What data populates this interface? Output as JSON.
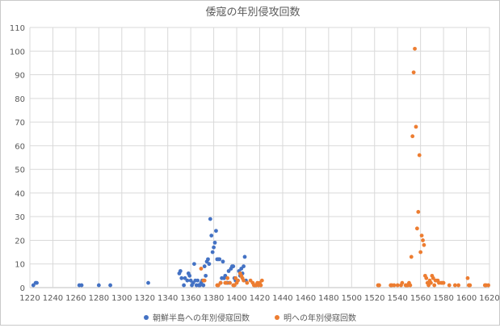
{
  "chart_data": {
    "type": "scatter",
    "title": "倭寇の年別侵攻回数",
    "xlabel": "",
    "ylabel": "",
    "xlim": [
      1220,
      1620
    ],
    "ylim": [
      0,
      110
    ],
    "x_ticks": [
      "1220",
      "1240",
      "1260",
      "1280",
      "1300",
      "1320",
      "1340",
      "1360",
      "1380",
      "1400",
      "1420",
      "1440",
      "1460",
      "1480",
      "1500",
      "1520",
      "1540",
      "1560",
      "1580",
      "1600",
      "1620"
    ],
    "y_ticks": [
      "0",
      "10",
      "20",
      "30",
      "40",
      "50",
      "60",
      "70",
      "80",
      "90",
      "100",
      "110"
    ],
    "grid": true,
    "legend_position": "bottom",
    "series": [
      {
        "name": "朝鮮半島への年別侵寇回数",
        "color": "#4472C4",
        "points": [
          [
            1223,
            1
          ],
          [
            1225,
            2
          ],
          [
            1226,
            2
          ],
          [
            1263,
            1
          ],
          [
            1265,
            1
          ],
          [
            1280,
            1
          ],
          [
            1290,
            1
          ],
          [
            1323,
            2
          ],
          [
            1350,
            6
          ],
          [
            1351,
            7
          ],
          [
            1352,
            4
          ],
          [
            1354,
            1
          ],
          [
            1355,
            4
          ],
          [
            1357,
            3
          ],
          [
            1358,
            6
          ],
          [
            1359,
            5
          ],
          [
            1360,
            3
          ],
          [
            1361,
            1
          ],
          [
            1362,
            2
          ],
          [
            1363,
            10
          ],
          [
            1364,
            3
          ],
          [
            1365,
            1
          ],
          [
            1366,
            3
          ],
          [
            1367,
            1
          ],
          [
            1368,
            1
          ],
          [
            1369,
            2
          ],
          [
            1370,
            3
          ],
          [
            1371,
            1
          ],
          [
            1372,
            9
          ],
          [
            1373,
            5
          ],
          [
            1374,
            11
          ],
          [
            1375,
            12
          ],
          [
            1376,
            10
          ],
          [
            1377,
            29
          ],
          [
            1378,
            22
          ],
          [
            1379,
            15
          ],
          [
            1380,
            17
          ],
          [
            1381,
            19
          ],
          [
            1382,
            24
          ],
          [
            1383,
            12
          ],
          [
            1384,
            12
          ],
          [
            1385,
            12
          ],
          [
            1386,
            2
          ],
          [
            1387,
            4
          ],
          [
            1388,
            11
          ],
          [
            1389,
            4
          ],
          [
            1390,
            5
          ],
          [
            1391,
            2
          ],
          [
            1392,
            2
          ],
          [
            1393,
            7
          ],
          [
            1394,
            2
          ],
          [
            1395,
            8
          ],
          [
            1396,
            9
          ],
          [
            1397,
            9
          ],
          [
            1398,
            4
          ],
          [
            1399,
            3
          ],
          [
            1400,
            3
          ],
          [
            1401,
            3
          ],
          [
            1402,
            7
          ],
          [
            1403,
            5
          ],
          [
            1404,
            8
          ],
          [
            1405,
            6
          ],
          [
            1406,
            9
          ],
          [
            1407,
            13
          ],
          [
            1408,
            3
          ]
        ]
      },
      {
        "name": "明への年別侵寇回数",
        "color": "#ED7D31",
        "points": [
          [
            1369,
            8
          ],
          [
            1371,
            3
          ],
          [
            1372,
            3
          ],
          [
            1383,
            1
          ],
          [
            1384,
            1
          ],
          [
            1386,
            2
          ],
          [
            1390,
            2
          ],
          [
            1391,
            2
          ],
          [
            1392,
            4
          ],
          [
            1394,
            2
          ],
          [
            1397,
            1
          ],
          [
            1398,
            1
          ],
          [
            1399,
            4
          ],
          [
            1400,
            2
          ],
          [
            1401,
            3
          ],
          [
            1403,
            6
          ],
          [
            1404,
            5
          ],
          [
            1405,
            4
          ],
          [
            1406,
            3
          ],
          [
            1409,
            2
          ],
          [
            1412,
            3
          ],
          [
            1414,
            2
          ],
          [
            1415,
            1
          ],
          [
            1416,
            1
          ],
          [
            1417,
            1
          ],
          [
            1418,
            2
          ],
          [
            1419,
            1
          ],
          [
            1420,
            2
          ],
          [
            1421,
            1
          ],
          [
            1422,
            3
          ],
          [
            1523,
            1
          ],
          [
            1524,
            1
          ],
          [
            1534,
            1
          ],
          [
            1535,
            1
          ],
          [
            1537,
            1
          ],
          [
            1540,
            1
          ],
          [
            1543,
            1
          ],
          [
            1544,
            2
          ],
          [
            1547,
            1
          ],
          [
            1548,
            1
          ],
          [
            1549,
            1
          ],
          [
            1550,
            2
          ],
          [
            1551,
            1
          ],
          [
            1552,
            13
          ],
          [
            1553,
            64
          ],
          [
            1554,
            91
          ],
          [
            1555,
            101
          ],
          [
            1556,
            68
          ],
          [
            1557,
            25
          ],
          [
            1558,
            32
          ],
          [
            1559,
            56
          ],
          [
            1560,
            15
          ],
          [
            1561,
            22
          ],
          [
            1562,
            20
          ],
          [
            1563,
            18
          ],
          [
            1564,
            5
          ],
          [
            1565,
            4
          ],
          [
            1566,
            2
          ],
          [
            1567,
            1
          ],
          [
            1568,
            3
          ],
          [
            1569,
            2
          ],
          [
            1570,
            5
          ],
          [
            1571,
            4
          ],
          [
            1572,
            1
          ],
          [
            1573,
            3
          ],
          [
            1574,
            3
          ],
          [
            1575,
            3
          ],
          [
            1576,
            2
          ],
          [
            1578,
            2
          ],
          [
            1579,
            2
          ],
          [
            1580,
            2
          ],
          [
            1585,
            1
          ],
          [
            1590,
            1
          ],
          [
            1593,
            1
          ],
          [
            1601,
            4
          ],
          [
            1602,
            1
          ],
          [
            1603,
            1
          ],
          [
            1616,
            1
          ],
          [
            1617,
            1
          ],
          [
            1619,
            1
          ]
        ]
      }
    ]
  }
}
